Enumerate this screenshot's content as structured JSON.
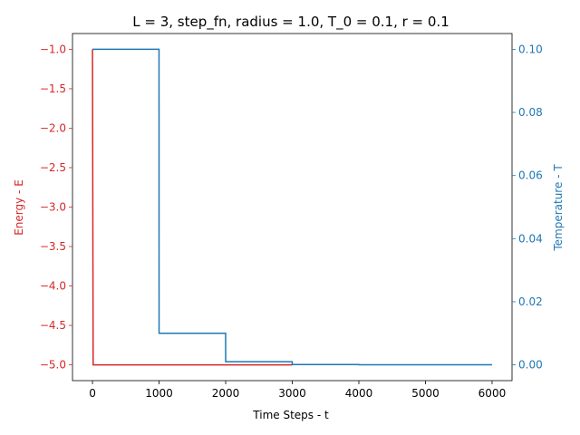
{
  "chart_data": {
    "type": "line",
    "title": "L = 3, step_fn, radius = 1.0, T_0 = 0.1, r = 0.1",
    "xlabel": "Time Steps - t",
    "ylabel_left": "Energy - E",
    "ylabel_right": "Temperature - T",
    "xlim": [
      -300,
      6300
    ],
    "ylim_left": [
      -5.2,
      -0.8
    ],
    "ylim_right": [
      -0.005,
      0.105
    ],
    "xticks": [
      0,
      1000,
      2000,
      3000,
      4000,
      5000,
      6000
    ],
    "yticks_left": [
      -1.0,
      -1.5,
      -2.0,
      -2.5,
      -3.0,
      -3.5,
      -4.0,
      -4.5,
      -5.0
    ],
    "yticks_right": [
      0.0,
      0.02,
      0.04,
      0.06,
      0.08,
      0.1
    ],
    "xtick_labels": [
      "0",
      "1000",
      "2000",
      "3000",
      "4000",
      "5000",
      "6000"
    ],
    "ytick_labels_left": [
      "−1.0",
      "−1.5",
      "−2.0",
      "−2.5",
      "−3.0",
      "−3.5",
      "−4.0",
      "−4.5",
      "−5.0"
    ],
    "ytick_labels_right": [
      "0.00",
      "0.02",
      "0.04",
      "0.06",
      "0.08",
      "0.10"
    ],
    "grid": false,
    "series": [
      {
        "axis": "left",
        "color": "#d62728",
        "x": [
          0,
          10,
          3000
        ],
        "y": [
          -1.0,
          -5.0,
          -5.0
        ]
      },
      {
        "axis": "right",
        "color": "#1f77b4",
        "x": [
          0,
          999,
          1000,
          1999,
          2000,
          2999,
          3000,
          3999,
          4000,
          6000
        ],
        "y": [
          0.1,
          0.1,
          0.01,
          0.01,
          0.001,
          0.001,
          0.0001,
          0.0001,
          1e-05,
          1e-05
        ]
      }
    ]
  }
}
